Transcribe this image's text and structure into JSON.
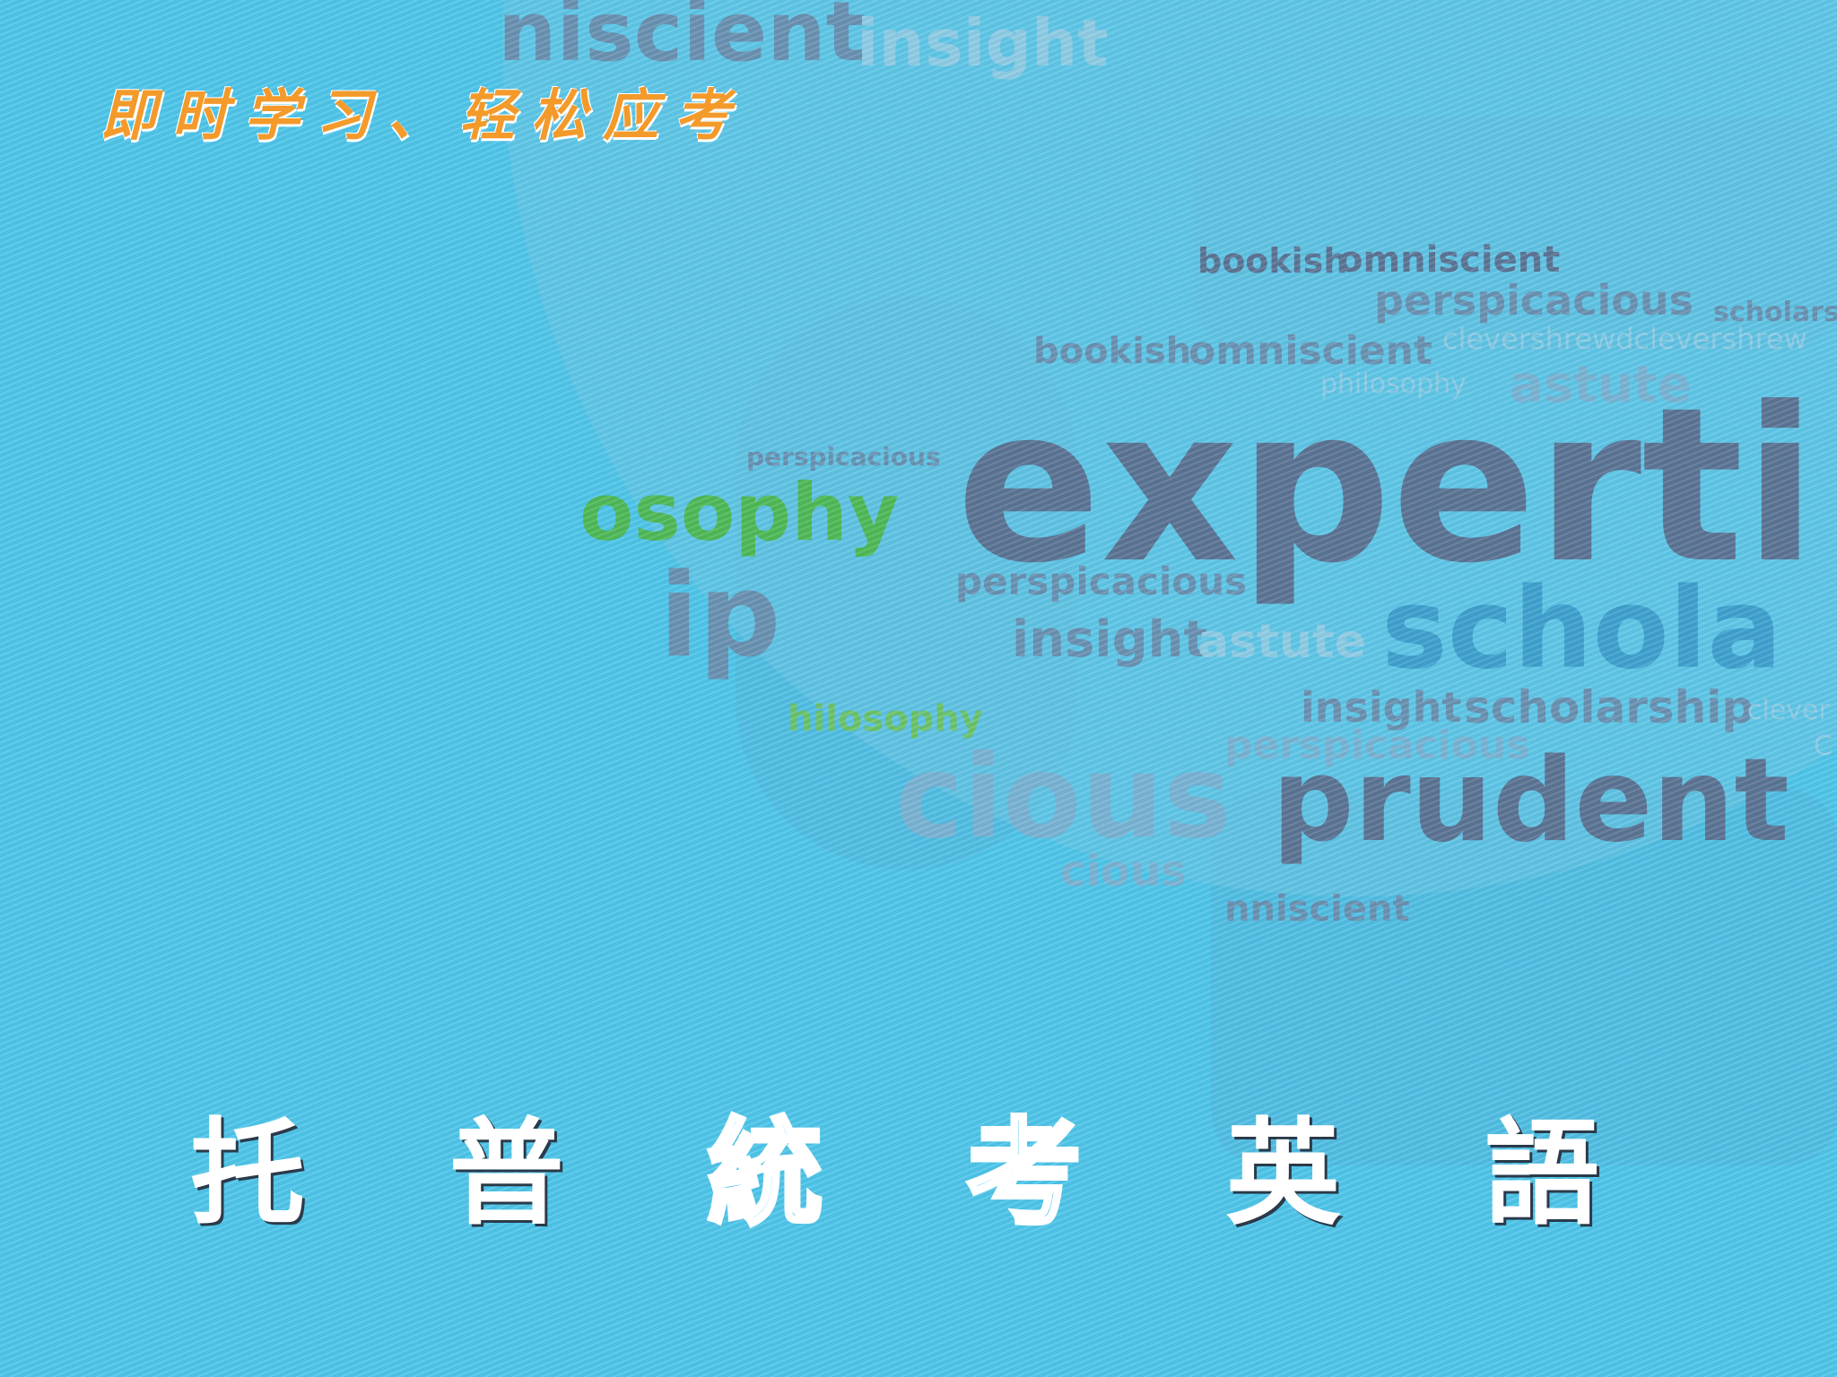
{
  "slide": {
    "tagline": "即时学习、轻松应考",
    "title_chars": [
      "托",
      "普",
      "統",
      "考",
      "英",
      "語"
    ],
    "background_color": "#4fc6ea",
    "accent_color": "#f39a2b"
  },
  "word_cloud": {
    "w_top1": "niscient",
    "w_top2": "insight",
    "w1": "bookish",
    "w2": "omniscient",
    "w3": "perspicacious",
    "w4": "scholars",
    "w5": "bookish",
    "w6": "omniscient",
    "w7": "clevershrewdclevershrew",
    "w8": "philosophy",
    "w9": "astute",
    "w10": "perspicacious",
    "w11": "osophy",
    "w12": "experti",
    "w13": "ip",
    "w14": "perspicacious",
    "w15": "insight",
    "w16": "astute",
    "w17": "schola",
    "w18": "hilosophy",
    "w19": "insight",
    "w20": "scholarship",
    "w21": "clever",
    "w22": "perspicacious",
    "w23": "cious",
    "w24": "prudent",
    "w25": "cious",
    "w26": "nniscient",
    "w27": "C"
  }
}
